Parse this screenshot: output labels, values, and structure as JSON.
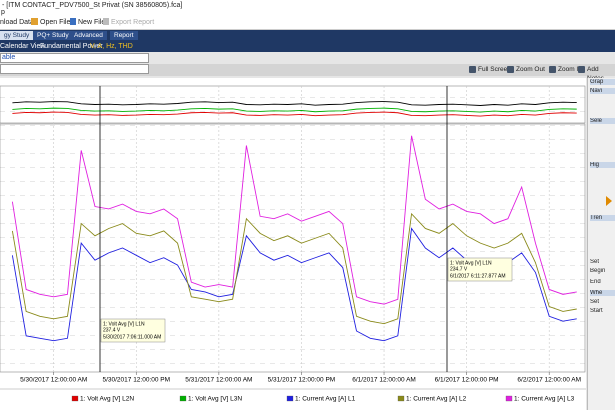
{
  "window": {
    "title": "- [ITM CONTACT_PDV7500_St Privat (SN 38560805).fca]",
    "menu": "p"
  },
  "toolbar": [
    "nload Data",
    "Open File",
    "New File",
    "Export Report"
  ],
  "tabs": [
    "gy Study",
    "PQ+ Study",
    "Advanced",
    "Report"
  ],
  "subtabs": [
    "Calendar View",
    "Fundamental Power",
    "V, A, Hz, THD"
  ],
  "field": "able",
  "chart_toolbar": [
    "Full Screen",
    "Zoom Out",
    "Zoom In",
    "Add Notes"
  ],
  "right_panel": [
    "Grap",
    "Navi",
    "Sele",
    "Hig",
    "Tren",
    "Set",
    "Begin",
    "End",
    "Whe",
    "Set",
    "Start"
  ],
  "chart_data": {
    "type": "line",
    "x": [
      -6,
      -4,
      -2,
      0,
      2,
      4,
      6,
      8,
      10,
      12,
      14,
      16,
      18,
      20,
      22,
      24,
      26,
      28,
      30,
      32,
      34,
      36,
      38,
      40,
      42,
      44,
      46,
      48,
      50,
      52,
      54,
      56,
      58,
      60,
      62,
      64,
      66,
      68,
      70,
      72,
      74,
      76
    ],
    "xlim": [
      -7.8,
      77.2
    ],
    "xticks": [
      {
        "value": 0,
        "label": "5/30/2017 12:00:00 AM"
      },
      {
        "value": 12,
        "label": "5/30/2017 12:00:00 PM"
      },
      {
        "value": 24,
        "label": "5/31/2017 12:00:00 AM"
      },
      {
        "value": 36,
        "label": "5/31/2017 12:00:00 PM"
      },
      {
        "value": 48,
        "label": "6/1/2017 12:00:00 AM"
      },
      {
        "value": 60,
        "label": "6/1/2017 12:00:00 PM"
      },
      {
        "value": 72,
        "label": "6/2/2017 12:00:00 AM"
      }
    ],
    "ylim": [
      0,
      100
    ],
    "y2lim": [
      0,
      100
    ],
    "grid": true,
    "series": [
      {
        "name": "1: Volt Avg [V] L1N",
        "color": "#000000",
        "axis": "y2",
        "values": [
          55,
          58,
          57,
          59,
          58,
          52,
          50,
          51,
          49,
          50,
          52,
          51,
          53,
          57,
          58,
          56,
          57,
          50,
          49,
          51,
          50,
          52,
          48,
          50,
          51,
          56,
          58,
          59,
          57,
          49,
          48,
          50,
          51,
          49,
          47,
          50,
          48,
          52,
          50,
          55,
          57,
          56
        ]
      },
      {
        "name": "1: Volt Avg [V] L2N",
        "color": "#e00000",
        "axis": "y2",
        "values": [
          23,
          26,
          25,
          27,
          26,
          20,
          18,
          19,
          17,
          18,
          20,
          19,
          21,
          25,
          26,
          24,
          25,
          18,
          17,
          19,
          18,
          20,
          16,
          18,
          19,
          24,
          26,
          27,
          25,
          17,
          16,
          18,
          19,
          17,
          15,
          18,
          16,
          20,
          18,
          23,
          25,
          24
        ]
      },
      {
        "name": "1: Volt Avg [V] L3N",
        "color": "#00b000",
        "axis": "y2",
        "values": [
          35,
          38,
          37,
          39,
          38,
          32,
          30,
          31,
          29,
          30,
          32,
          31,
          33,
          37,
          38,
          36,
          37,
          30,
          29,
          31,
          30,
          32,
          28,
          30,
          31,
          36,
          38,
          39,
          37,
          29,
          28,
          30,
          31,
          29,
          27,
          30,
          28,
          32,
          30,
          35,
          37,
          36
        ]
      },
      {
        "name": "1: Current Avg [A] L1",
        "color": "#2020e0",
        "values": [
          47,
          14,
          13,
          12,
          13,
          52,
          45,
          48,
          50,
          47,
          44,
          46,
          43,
          33,
          32,
          30,
          31,
          55,
          48,
          45,
          47,
          44,
          46,
          48,
          42,
          16,
          13,
          12,
          14,
          58,
          50,
          46,
          50,
          45,
          42,
          40,
          44,
          48,
          40,
          22,
          20,
          21
        ]
      },
      {
        "name": "1: Current Avg [A] L2",
        "color": "#8a8a1a",
        "values": [
          57,
          24,
          22,
          21,
          22,
          60,
          55,
          58,
          60,
          56,
          55,
          57,
          52,
          30,
          29,
          28,
          29,
          62,
          56,
          53,
          55,
          52,
          54,
          56,
          50,
          22,
          20,
          19,
          21,
          64,
          58,
          56,
          60,
          55,
          52,
          50,
          52,
          56,
          44,
          26,
          24,
          25
        ]
      },
      {
        "name": "1: Current Avg [A] L3",
        "color": "#e020e0",
        "values": [
          69,
          33,
          31,
          30,
          31,
          90,
          67,
          66,
          68,
          65,
          64,
          66,
          62,
          36,
          34,
          35,
          34,
          92,
          63,
          62,
          64,
          61,
          63,
          65,
          60,
          30,
          28,
          27,
          29,
          96,
          70,
          66,
          68,
          65,
          64,
          60,
          62,
          75,
          52,
          33,
          31,
          32
        ]
      }
    ],
    "annotations": [
      [
        "1: Volt Avg [V] L1N",
        "237.4 V",
        "5/30/2017 7:06:11.000 AM"
      ],
      [
        "1: Volt Avg [V] L1N",
        "234.7 V",
        "6/1/2017 6:11:27.877 AM"
      ]
    ]
  }
}
